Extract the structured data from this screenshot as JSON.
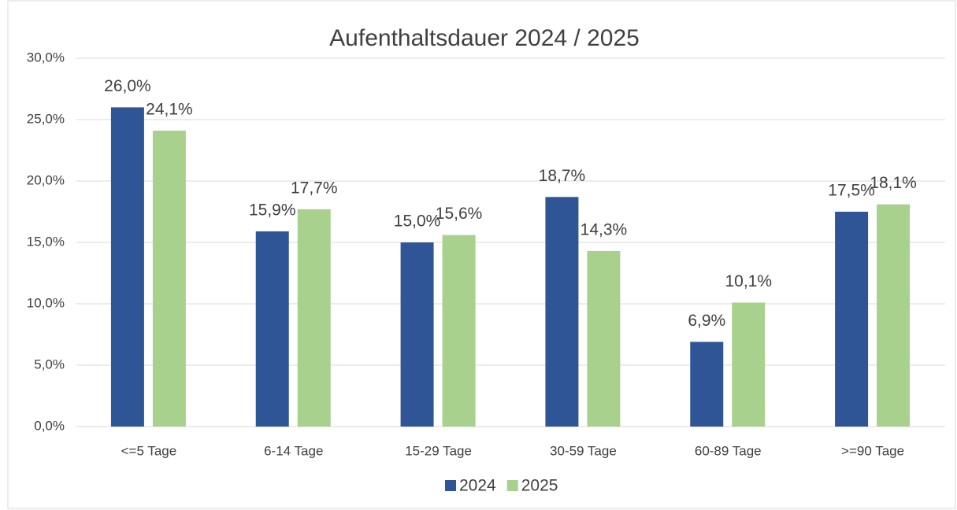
{
  "chart_data": {
    "type": "bar",
    "title": "Aufenthaltsdauer 2024 / 2025",
    "categories": [
      "<=5 Tage",
      "6-14 Tage",
      "15-29 Tage",
      "30-59 Tage",
      "60-89 Tage",
      ">=90 Tage"
    ],
    "series": [
      {
        "name": "2024",
        "color": "#2f5597",
        "values": [
          26.0,
          15.9,
          15.0,
          18.7,
          6.9,
          17.5
        ],
        "value_labels": [
          "26,0%",
          "15,9%",
          "15,0%",
          "18,7%",
          "6,9%",
          "17,5%"
        ]
      },
      {
        "name": "2025",
        "color": "#a9d18e",
        "values": [
          24.1,
          17.7,
          15.6,
          14.3,
          10.1,
          18.1
        ],
        "value_labels": [
          "24,1%",
          "17,7%",
          "15,6%",
          "14,3%",
          "10,1%",
          "18,1%"
        ]
      }
    ],
    "ylim": [
      0,
      30
    ],
    "yticks": [
      {
        "value": 0,
        "label": "0,0%"
      },
      {
        "value": 5,
        "label": "5,0%"
      },
      {
        "value": 10,
        "label": "10,0%"
      },
      {
        "value": 15,
        "label": "15,0%"
      },
      {
        "value": 20,
        "label": "20,0%"
      },
      {
        "value": 25,
        "label": "25,0%"
      },
      {
        "value": 30,
        "label": "30,0%"
      }
    ],
    "grid": true,
    "legend": "bottom"
  }
}
